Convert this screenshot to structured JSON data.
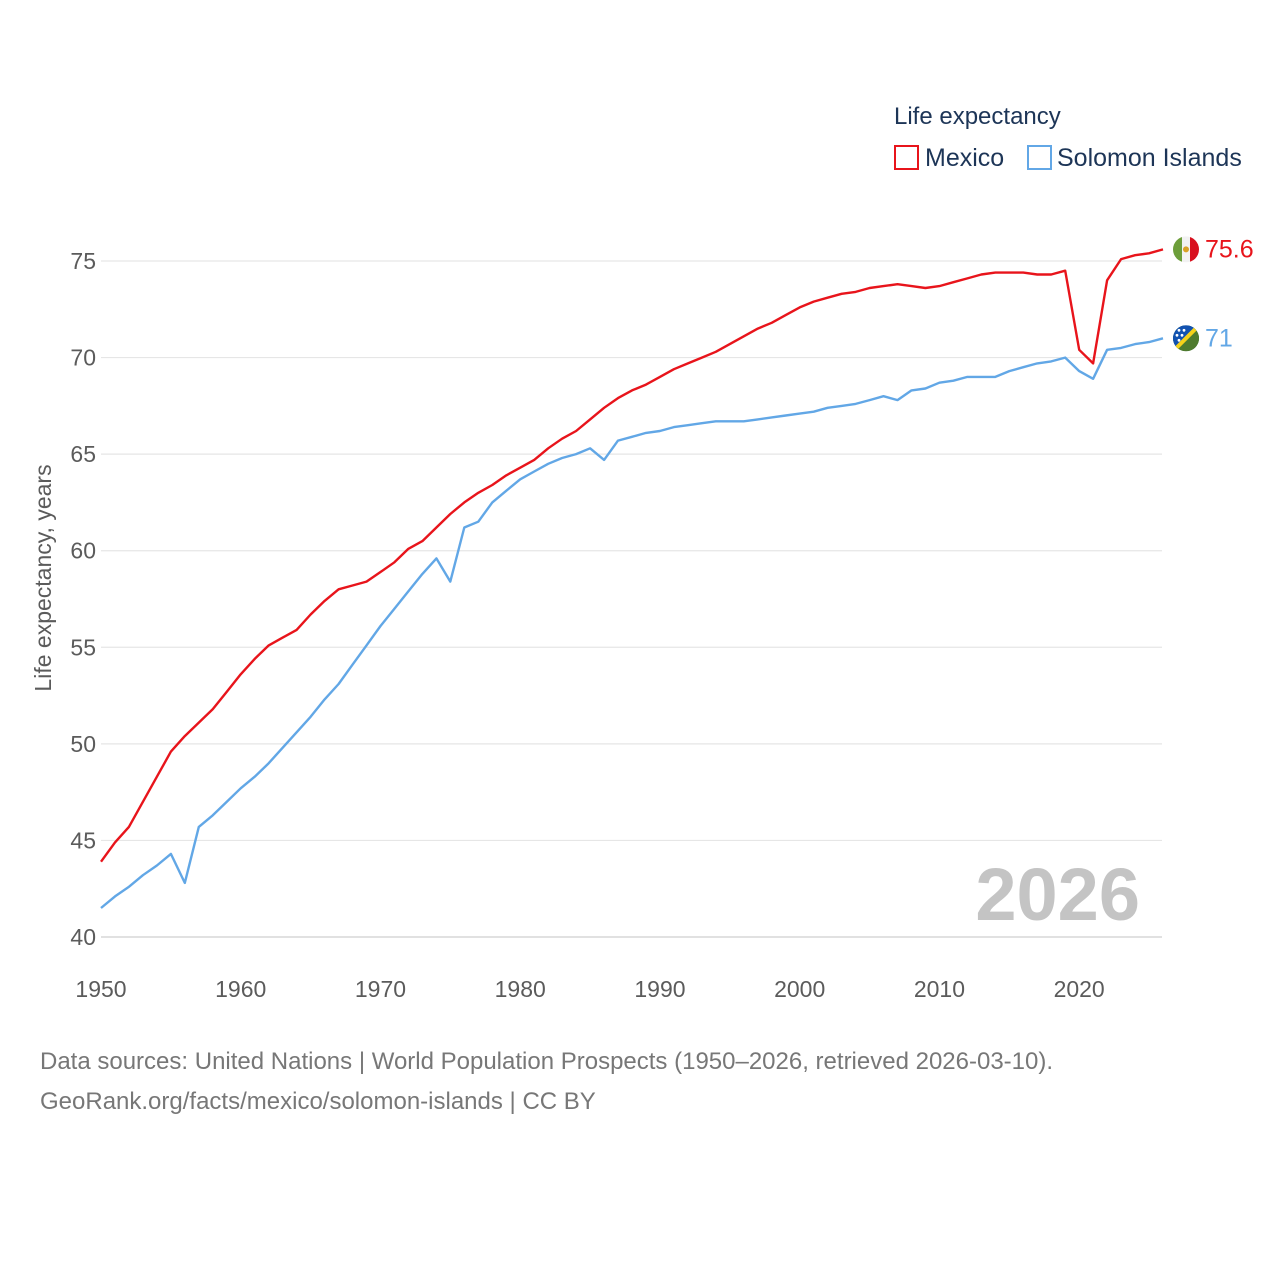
{
  "chart_data": {
    "type": "line",
    "legend_title": "Life expectancy",
    "ylabel": "Life expectancy, years",
    "xlabel": "",
    "xlim": [
      1950,
      2026
    ],
    "ylim": [
      40,
      77.5
    ],
    "x_ticks": [
      1950,
      1960,
      1970,
      1980,
      1990,
      2000,
      2010,
      2020
    ],
    "y_ticks": [
      40,
      45,
      50,
      55,
      60,
      65,
      70,
      75
    ],
    "grid": true,
    "legend_position": "top-right",
    "year_watermark": "2026",
    "series": [
      {
        "name": "Mexico",
        "color": "#e8141b",
        "end_label": "75.6",
        "flag": "mexico-flag-icon",
        "points": [
          [
            1950,
            43.9
          ],
          [
            1951,
            44.9
          ],
          [
            1952,
            45.7
          ],
          [
            1953,
            47.0
          ],
          [
            1954,
            48.3
          ],
          [
            1955,
            49.6
          ],
          [
            1956,
            50.4
          ],
          [
            1957,
            51.1
          ],
          [
            1958,
            51.8
          ],
          [
            1959,
            52.7
          ],
          [
            1960,
            53.6
          ],
          [
            1961,
            54.4
          ],
          [
            1962,
            55.1
          ],
          [
            1963,
            55.5
          ],
          [
            1964,
            55.9
          ],
          [
            1965,
            56.7
          ],
          [
            1966,
            57.4
          ],
          [
            1967,
            58.0
          ],
          [
            1968,
            58.2
          ],
          [
            1969,
            58.4
          ],
          [
            1970,
            58.9
          ],
          [
            1971,
            59.4
          ],
          [
            1972,
            60.1
          ],
          [
            1973,
            60.5
          ],
          [
            1974,
            61.2
          ],
          [
            1975,
            61.9
          ],
          [
            1976,
            62.5
          ],
          [
            1977,
            63.0
          ],
          [
            1978,
            63.4
          ],
          [
            1979,
            63.9
          ],
          [
            1980,
            64.3
          ],
          [
            1981,
            64.7
          ],
          [
            1982,
            65.3
          ],
          [
            1983,
            65.8
          ],
          [
            1984,
            66.2
          ],
          [
            1985,
            66.8
          ],
          [
            1986,
            67.4
          ],
          [
            1987,
            67.9
          ],
          [
            1988,
            68.3
          ],
          [
            1989,
            68.6
          ],
          [
            1990,
            69.0
          ],
          [
            1991,
            69.4
          ],
          [
            1992,
            69.7
          ],
          [
            1993,
            70.0
          ],
          [
            1994,
            70.3
          ],
          [
            1995,
            70.7
          ],
          [
            1996,
            71.1
          ],
          [
            1997,
            71.5
          ],
          [
            1998,
            71.8
          ],
          [
            1999,
            72.2
          ],
          [
            2000,
            72.6
          ],
          [
            2001,
            72.9
          ],
          [
            2002,
            73.1
          ],
          [
            2003,
            73.3
          ],
          [
            2004,
            73.4
          ],
          [
            2005,
            73.6
          ],
          [
            2006,
            73.7
          ],
          [
            2007,
            73.8
          ],
          [
            2008,
            73.7
          ],
          [
            2009,
            73.6
          ],
          [
            2010,
            73.7
          ],
          [
            2011,
            73.9
          ],
          [
            2012,
            74.1
          ],
          [
            2013,
            74.3
          ],
          [
            2014,
            74.4
          ],
          [
            2015,
            74.4
          ],
          [
            2016,
            74.4
          ],
          [
            2017,
            74.3
          ],
          [
            2018,
            74.3
          ],
          [
            2019,
            74.5
          ],
          [
            2020,
            70.4
          ],
          [
            2021,
            69.7
          ],
          [
            2022,
            74.0
          ],
          [
            2023,
            75.1
          ],
          [
            2024,
            75.3
          ],
          [
            2025,
            75.4
          ],
          [
            2026,
            75.6
          ]
        ]
      },
      {
        "name": "Solomon Islands",
        "color": "#62a7e6",
        "end_label": "71",
        "flag": "solomon-islands-flag-icon",
        "points": [
          [
            1950,
            41.5
          ],
          [
            1951,
            42.1
          ],
          [
            1952,
            42.6
          ],
          [
            1953,
            43.2
          ],
          [
            1954,
            43.7
          ],
          [
            1955,
            44.3
          ],
          [
            1956,
            42.8
          ],
          [
            1957,
            45.7
          ],
          [
            1958,
            46.3
          ],
          [
            1959,
            47.0
          ],
          [
            1960,
            47.7
          ],
          [
            1961,
            48.3
          ],
          [
            1962,
            49.0
          ],
          [
            1963,
            49.8
          ],
          [
            1964,
            50.6
          ],
          [
            1965,
            51.4
          ],
          [
            1966,
            52.3
          ],
          [
            1967,
            53.1
          ],
          [
            1968,
            54.1
          ],
          [
            1969,
            55.1
          ],
          [
            1970,
            56.1
          ],
          [
            1971,
            57.0
          ],
          [
            1972,
            57.9
          ],
          [
            1973,
            58.8
          ],
          [
            1974,
            59.6
          ],
          [
            1975,
            58.4
          ],
          [
            1976,
            61.2
          ],
          [
            1977,
            61.5
          ],
          [
            1978,
            62.5
          ],
          [
            1979,
            63.1
          ],
          [
            1980,
            63.7
          ],
          [
            1981,
            64.1
          ],
          [
            1982,
            64.5
          ],
          [
            1983,
            64.8
          ],
          [
            1984,
            65.0
          ],
          [
            1985,
            65.3
          ],
          [
            1986,
            64.7
          ],
          [
            1987,
            65.7
          ],
          [
            1988,
            65.9
          ],
          [
            1989,
            66.1
          ],
          [
            1990,
            66.2
          ],
          [
            1991,
            66.4
          ],
          [
            1992,
            66.5
          ],
          [
            1993,
            66.6
          ],
          [
            1994,
            66.7
          ],
          [
            1995,
            66.7
          ],
          [
            1996,
            66.7
          ],
          [
            1997,
            66.8
          ],
          [
            1998,
            66.9
          ],
          [
            1999,
            67.0
          ],
          [
            2000,
            67.1
          ],
          [
            2001,
            67.2
          ],
          [
            2002,
            67.4
          ],
          [
            2003,
            67.5
          ],
          [
            2004,
            67.6
          ],
          [
            2005,
            67.8
          ],
          [
            2006,
            68.0
          ],
          [
            2007,
            67.8
          ],
          [
            2008,
            68.3
          ],
          [
            2009,
            68.4
          ],
          [
            2010,
            68.7
          ],
          [
            2011,
            68.8
          ],
          [
            2012,
            69.0
          ],
          [
            2013,
            69.0
          ],
          [
            2014,
            69.0
          ],
          [
            2015,
            69.3
          ],
          [
            2016,
            69.5
          ],
          [
            2017,
            69.7
          ],
          [
            2018,
            69.8
          ],
          [
            2019,
            70.0
          ],
          [
            2020,
            69.3
          ],
          [
            2021,
            68.9
          ],
          [
            2022,
            70.4
          ],
          [
            2023,
            70.5
          ],
          [
            2024,
            70.7
          ],
          [
            2025,
            70.8
          ],
          [
            2026,
            71.0
          ]
        ]
      }
    ]
  },
  "footer": {
    "source_line": "Data sources: United Nations | World Population Prospects (1950–2026, retrieved 2026-03-10).",
    "attribution_line": "GeoRank.org/facts/mexico/solomon-islands | CC BY"
  }
}
